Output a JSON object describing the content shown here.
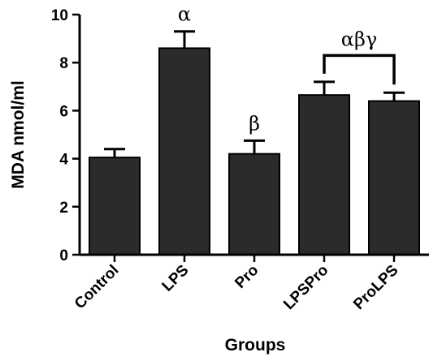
{
  "chart_data": {
    "type": "bar",
    "title": "",
    "xlabel": "Groups",
    "ylabel": "MDA nmol/ml",
    "ylim": [
      0,
      10
    ],
    "yticks": [
      0,
      2,
      4,
      6,
      8,
      10
    ],
    "grid": false,
    "categories": [
      "Control",
      "LPS",
      "Pro",
      "LPSPro",
      "ProLPS"
    ],
    "values": [
      4.05,
      8.6,
      4.2,
      6.65,
      6.4
    ],
    "errors": [
      0.35,
      0.7,
      0.55,
      0.55,
      0.35
    ],
    "bar_color": "#2b2b2b",
    "annotations": [
      {
        "text": "α",
        "category": "LPS"
      },
      {
        "text": "β",
        "category": "Pro"
      },
      {
        "text": "αβγ",
        "categories": [
          "LPSPro",
          "ProLPS"
        ],
        "bracket": true
      }
    ]
  }
}
